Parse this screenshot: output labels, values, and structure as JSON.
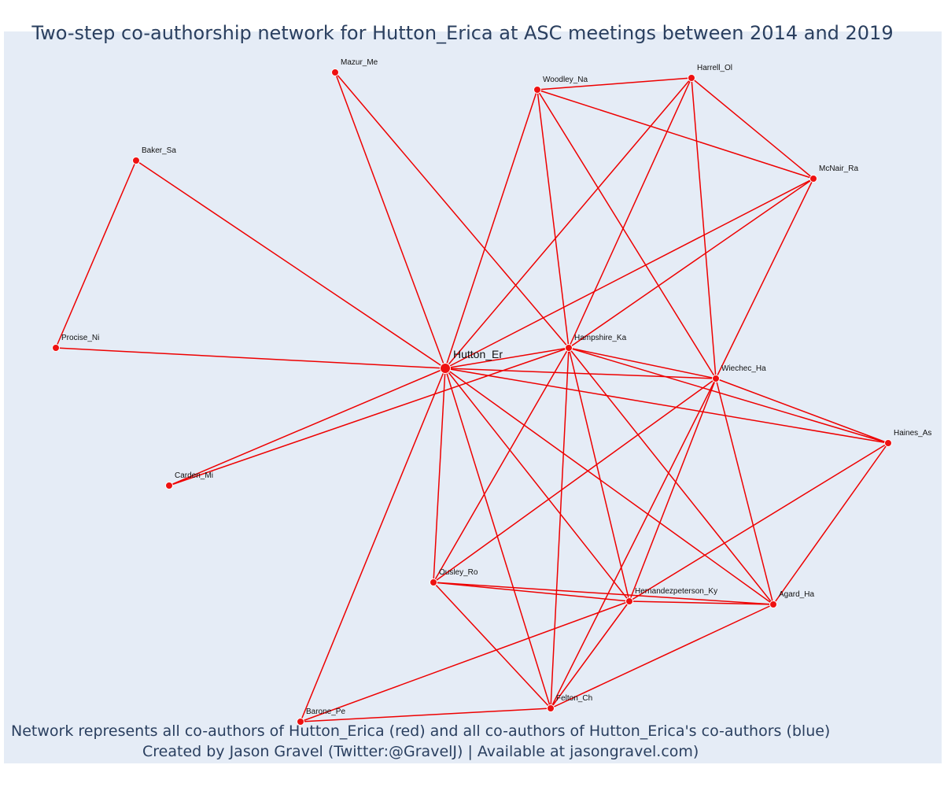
{
  "title": "Two-step co-authorship network for Hutton_Erica at ASC meetings between 2014 and 2019",
  "caption_line1": "Network represents all co-authors of Hutton_Erica (red) and all co-authors of Hutton_Erica's co-authors (blue)",
  "caption_line2": "Created by Jason Gravel (Twitter:@GravelJ) | Available at jasongravel.com)",
  "colors": {
    "edge": "#ee0000",
    "node": "#ee1111",
    "node_outline": "#ffffff",
    "label": "#111111",
    "plot_bg": "#e5ecf6",
    "text": "#2a3f5f"
  },
  "nodes": [
    {
      "id": "Hutton_Er",
      "label": "Hutton_Er",
      "focal": true
    },
    {
      "id": "Mazur_Me",
      "label": "Mazur_Me"
    },
    {
      "id": "Woodley_Na",
      "label": "Woodley_Na"
    },
    {
      "id": "Harrell_Ol",
      "label": "Harrell_Ol"
    },
    {
      "id": "McNair_Ra",
      "label": "McNair_Ra"
    },
    {
      "id": "Baker_Sa",
      "label": "Baker_Sa"
    },
    {
      "id": "Procise_Ni",
      "label": "Procise_Ni"
    },
    {
      "id": "Hampshire_Ka",
      "label": "Hampshire_Ka"
    },
    {
      "id": "Wiechec_Ha",
      "label": "Wiechec_Ha"
    },
    {
      "id": "Haines_As",
      "label": "Haines_As"
    },
    {
      "id": "Carden_Mi",
      "label": "Carden_Mi"
    },
    {
      "id": "Ousley_Ro",
      "label": "Ousley_Ro"
    },
    {
      "id": "Hernandezpeterson_Ky",
      "label": "Hernandezpeterson_Ky"
    },
    {
      "id": "Agard_Ha",
      "label": "Agard_Ha"
    },
    {
      "id": "Felton_Ch",
      "label": "Felton_Ch"
    },
    {
      "id": "Barone_Pe",
      "label": "Barone_Pe"
    }
  ],
  "edges": [
    [
      "Hutton_Er",
      "Mazur_Me"
    ],
    [
      "Hutton_Er",
      "Woodley_Na"
    ],
    [
      "Hutton_Er",
      "Harrell_Ol"
    ],
    [
      "Hutton_Er",
      "McNair_Ra"
    ],
    [
      "Hutton_Er",
      "Baker_Sa"
    ],
    [
      "Hutton_Er",
      "Procise_Ni"
    ],
    [
      "Hutton_Er",
      "Hampshire_Ka"
    ],
    [
      "Hutton_Er",
      "Wiechec_Ha"
    ],
    [
      "Hutton_Er",
      "Haines_As"
    ],
    [
      "Hutton_Er",
      "Carden_Mi"
    ],
    [
      "Hutton_Er",
      "Ousley_Ro"
    ],
    [
      "Hutton_Er",
      "Hernandezpeterson_Ky"
    ],
    [
      "Hutton_Er",
      "Agard_Ha"
    ],
    [
      "Hutton_Er",
      "Felton_Ch"
    ],
    [
      "Hutton_Er",
      "Barone_Pe"
    ],
    [
      "Baker_Sa",
      "Procise_Ni"
    ],
    [
      "Mazur_Me",
      "Hampshire_Ka"
    ],
    [
      "Woodley_Na",
      "Harrell_Ol"
    ],
    [
      "Woodley_Na",
      "McNair_Ra"
    ],
    [
      "Woodley_Na",
      "Hampshire_Ka"
    ],
    [
      "Woodley_Na",
      "Wiechec_Ha"
    ],
    [
      "Harrell_Ol",
      "McNair_Ra"
    ],
    [
      "Harrell_Ol",
      "Hampshire_Ka"
    ],
    [
      "Harrell_Ol",
      "Wiechec_Ha"
    ],
    [
      "McNair_Ra",
      "Hampshire_Ka"
    ],
    [
      "McNair_Ra",
      "Wiechec_Ha"
    ],
    [
      "Hampshire_Ka",
      "Carden_Mi"
    ],
    [
      "Hampshire_Ka",
      "Wiechec_Ha"
    ],
    [
      "Hampshire_Ka",
      "Haines_As"
    ],
    [
      "Hampshire_Ka",
      "Ousley_Ro"
    ],
    [
      "Hampshire_Ka",
      "Hernandezpeterson_Ky"
    ],
    [
      "Hampshire_Ka",
      "Agard_Ha"
    ],
    [
      "Hampshire_Ka",
      "Felton_Ch"
    ],
    [
      "Wiechec_Ha",
      "Haines_As"
    ],
    [
      "Wiechec_Ha",
      "Ousley_Ro"
    ],
    [
      "Wiechec_Ha",
      "Hernandezpeterson_Ky"
    ],
    [
      "Wiechec_Ha",
      "Agard_Ha"
    ],
    [
      "Wiechec_Ha",
      "Felton_Ch"
    ],
    [
      "Haines_As",
      "Hernandezpeterson_Ky"
    ],
    [
      "Haines_As",
      "Agard_Ha"
    ],
    [
      "Ousley_Ro",
      "Hernandezpeterson_Ky"
    ],
    [
      "Ousley_Ro",
      "Agard_Ha"
    ],
    [
      "Ousley_Ro",
      "Felton_Ch"
    ],
    [
      "Hernandezpeterson_Ky",
      "Agard_Ha"
    ],
    [
      "Hernandezpeterson_Ky",
      "Felton_Ch"
    ],
    [
      "Hernandezpeterson_Ky",
      "Barone_Pe"
    ],
    [
      "Agard_Ha",
      "Felton_Ch"
    ],
    [
      "Felton_Ch",
      "Barone_Pe"
    ]
  ]
}
